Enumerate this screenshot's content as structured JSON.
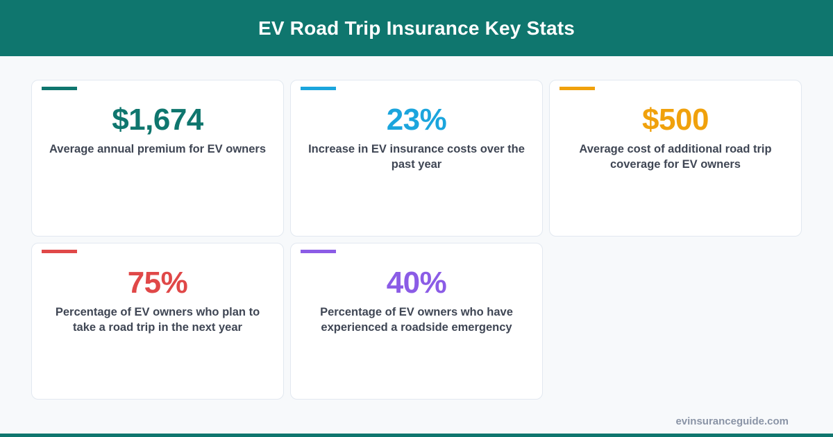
{
  "header": {
    "title": "EV Road Trip Insurance Key Stats"
  },
  "stats": [
    {
      "value": "$1,674",
      "label": "Average annual premium for EV owners",
      "color": "#0f766e"
    },
    {
      "value": "23%",
      "label": "Increase in EV insurance costs over the past year",
      "color": "#1ba5dd"
    },
    {
      "value": "$500",
      "label": "Average cost of additional road trip coverage for EV owners",
      "color": "#f0a10c"
    },
    {
      "value": "75%",
      "label": "Percentage of EV owners who plan to take a road trip in the next year",
      "color": "#e04848"
    },
    {
      "value": "40%",
      "label": "Percentage of EV owners who have experienced a roadside emergency",
      "color": "#8b5ce6"
    }
  ],
  "footer": {
    "site": "evinsuranceguide.com"
  },
  "chart_data": {
    "type": "table",
    "title": "EV Road Trip Insurance Key Stats",
    "rows": [
      {
        "value": 1674,
        "unit": "$",
        "label": "Average annual premium for EV owners"
      },
      {
        "value": 23,
        "unit": "%",
        "label": "Increase in EV insurance costs over the past year"
      },
      {
        "value": 500,
        "unit": "$",
        "label": "Average cost of additional road trip coverage for EV owners"
      },
      {
        "value": 75,
        "unit": "%",
        "label": "Percentage of EV owners who plan to take a road trip in the next year"
      },
      {
        "value": 40,
        "unit": "%",
        "label": "Percentage of EV owners who have experienced a roadside emergency"
      }
    ]
  }
}
